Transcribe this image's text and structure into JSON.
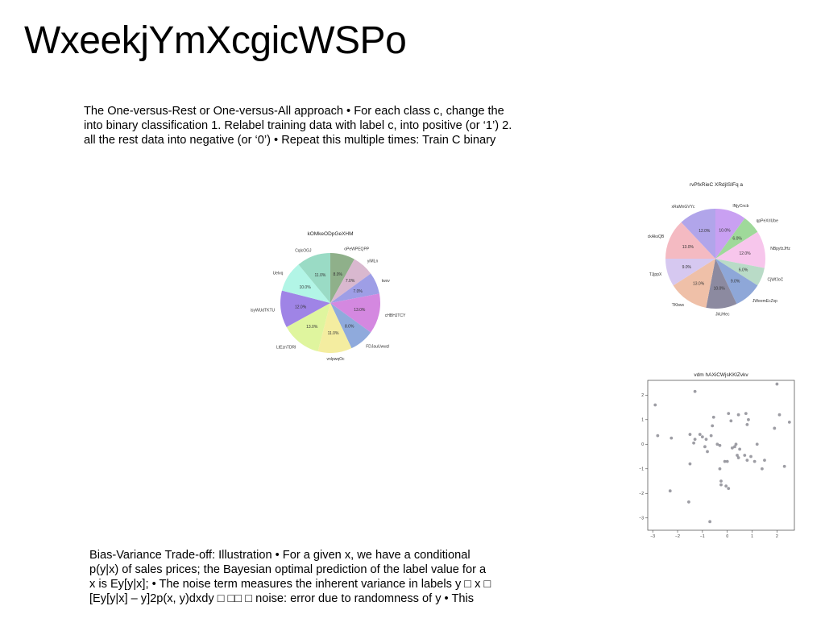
{
  "slide": {
    "title": "WxeekjYmXcgicWSPo",
    "paragraph1": [
      "The One-versus-Rest or One-versus-All approach • For each class c, change the",
      "into binary classification 1. Relabel training data with label c, into positive (or ‘1’) 2.",
      "all the rest data into negative (or ‘0’) • Repeat this multiple times: Train C binary"
    ],
    "paragraph2": [
      "Bias-Variance Trade-off: Illustration • For a given x, we have a conditional",
      "p(y|x) of sales prices; the Bayesian optimal prediction of the label value for a",
      "x is Ey[y|x]; • The noise term measures the inherent variance in labels y □ x □",
      "[Ey[y|x] – y]2p(x, y)dxdy □ □□ □ noise: error due to randomness of y • This"
    ]
  },
  "chart_data": [
    {
      "type": "pie",
      "title": "kOMkeODpGeXHM",
      "labels": [
        "oPeWPEQPP",
        "yiMLn",
        "twxv",
        "cHBHJTCY",
        "FDJauUwwzl",
        "vnlpwqOc",
        "LtEznTDRI",
        "isyWUdTKTU",
        "Uelvq",
        "CqlcOGJ"
      ],
      "values": [
        8,
        7,
        7,
        13,
        8,
        11,
        13,
        12,
        10,
        11
      ],
      "value_labels": [
        "8.0%",
        "7.0%",
        "7.0%",
        "13.0%",
        "8.0%",
        "11.0%",
        "13.0%",
        "12.0%",
        "10.0%",
        "11.0%"
      ],
      "colors": [
        "#8fb08a",
        "#d9b8cf",
        "#9e9ee6",
        "#d488e0",
        "#8faadc",
        "#f4eda0",
        "#dff59e",
        "#9f84e6",
        "#b2f5e6",
        "#9adbc5"
      ],
      "start": "top, clockwise"
    },
    {
      "type": "pie",
      "title": "rvPfxRieC XRdjISIFq a",
      "labels": [
        "lNjyCncb",
        "qpPeXrIUbe",
        "NBpyfzJHz",
        "CjWfJoC",
        "JWeemEcZxp",
        "JkUHec",
        "TKbws",
        "TJjppX",
        "ckAksQB",
        "xRaMnGVYc"
      ],
      "values": [
        10,
        6,
        12,
        6,
        9,
        10,
        13,
        9,
        13,
        12
      ],
      "value_labels": [
        "10.0%",
        "6.0%",
        "12.0%",
        "6.0%",
        "9.0%",
        "10.0%",
        "13.0%",
        "9.0%",
        "13.0%",
        "12.0%"
      ],
      "colors": [
        "#c9a0f2",
        "#9fd99a",
        "#f7c6ec",
        "#b9dbc7",
        "#8ea7d8",
        "#8c8aa0",
        "#efc0a8",
        "#d6c8f0",
        "#f4bac2",
        "#b1a5ea"
      ],
      "start": "top, clockwise"
    },
    {
      "type": "scatter",
      "title": "vdm hAXiCWjsKKlZvkv",
      "xlim": [
        -3.2,
        2.7
      ],
      "ylim": [
        -3.5,
        2.6
      ],
      "xticks": [
        -3,
        -2,
        -1,
        0,
        1,
        2
      ],
      "yticks": [
        -3,
        -2,
        -1,
        0,
        1,
        2
      ],
      "point_color": "#8c8c94",
      "points": [
        [
          -2.9,
          1.6
        ],
        [
          -2.8,
          0.35
        ],
        [
          -2.25,
          0.25
        ],
        [
          -2.3,
          -1.9
        ],
        [
          -1.55,
          -2.35
        ],
        [
          -1.3,
          2.15
        ],
        [
          -1.5,
          0.4
        ],
        [
          -1.5,
          -0.8
        ],
        [
          -1.35,
          0.05
        ],
        [
          -1.3,
          0.2
        ],
        [
          -1.1,
          0.4
        ],
        [
          -1.0,
          0.3
        ],
        [
          -0.9,
          -0.1
        ],
        [
          -0.8,
          -0.3
        ],
        [
          -0.85,
          0.2
        ],
        [
          -0.6,
          0.75
        ],
        [
          -0.55,
          1.1
        ],
        [
          -0.65,
          0.35
        ],
        [
          -0.7,
          -3.15
        ],
        [
          -0.4,
          0.0
        ],
        [
          -0.3,
          -0.05
        ],
        [
          -0.25,
          -1.5
        ],
        [
          -0.25,
          -1.65
        ],
        [
          -0.1,
          -0.7
        ],
        [
          0.0,
          -0.7
        ],
        [
          0.05,
          1.25
        ],
        [
          -0.05,
          -1.7
        ],
        [
          0.05,
          -1.8
        ],
        [
          0.15,
          0.95
        ],
        [
          0.2,
          -0.15
        ],
        [
          0.3,
          -0.1
        ],
        [
          0.35,
          0.0
        ],
        [
          0.4,
          -0.45
        ],
        [
          0.45,
          -0.55
        ],
        [
          0.5,
          -0.2
        ],
        [
          0.45,
          1.2
        ],
        [
          0.7,
          -0.45
        ],
        [
          0.8,
          -0.65
        ],
        [
          0.75,
          1.25
        ],
        [
          0.85,
          1.0
        ],
        [
          0.8,
          0.8
        ],
        [
          0.95,
          -0.5
        ],
        [
          1.1,
          -0.7
        ],
        [
          1.2,
          0.0
        ],
        [
          1.4,
          -1.0
        ],
        [
          1.5,
          -0.65
        ],
        [
          1.9,
          0.65
        ],
        [
          2.0,
          2.45
        ],
        [
          2.1,
          1.2
        ],
        [
          2.5,
          0.9
        ],
        [
          2.3,
          -0.9
        ],
        [
          -0.3,
          -1.0
        ]
      ]
    }
  ]
}
